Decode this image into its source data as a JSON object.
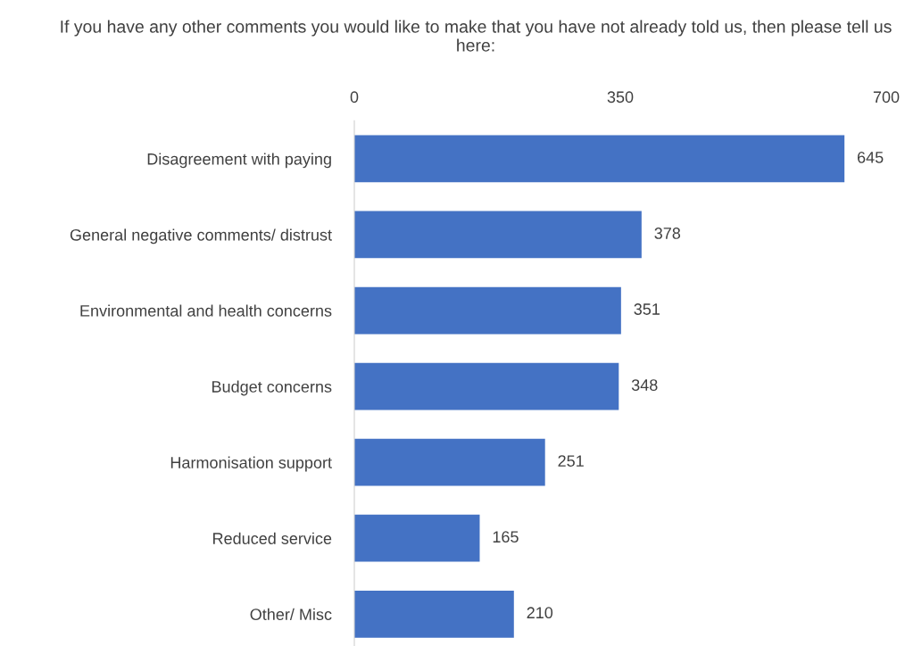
{
  "chart_data": {
    "type": "bar",
    "orientation": "horizontal",
    "title": "If you have any other comments you would like to make that you have not already told us, then please tell us here:",
    "categories": [
      "Disagreement with paying",
      "General negative comments/ distrust",
      "Environmental and health concerns",
      "Budget concerns",
      "Harmonisation support",
      "Reduced service",
      "Other/ Misc"
    ],
    "values": [
      645,
      378,
      351,
      348,
      251,
      165,
      210
    ],
    "color": "#4472c4",
    "xlim": [
      0,
      700
    ],
    "xticks": [
      0,
      350,
      700
    ],
    "data_labels": true,
    "grid": false,
    "legend": false
  }
}
